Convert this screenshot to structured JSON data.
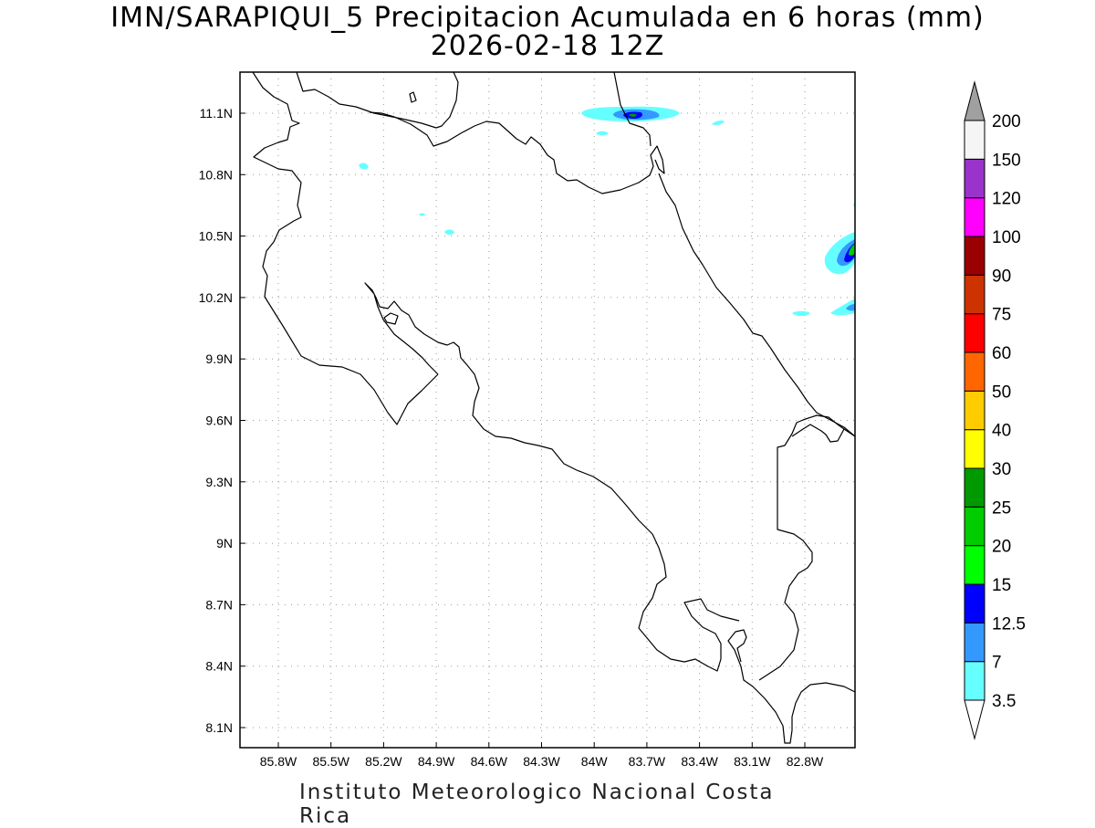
{
  "title": {
    "line1": "IMN/SARAPIQUI_5 Precipitacion Acumulada en 6 horas (mm)",
    "line2": "2026-02-18 12Z"
  },
  "footer": "Instituto Meteorologico Nacional Costa Rica",
  "map": {
    "lon_ticks": [
      "85.8W",
      "85.5W",
      "85.2W",
      "84.9W",
      "84.6W",
      "84.3W",
      "84W",
      "83.7W",
      "83.4W",
      "83.1W",
      "82.8W"
    ],
    "lat_ticks": [
      "11.1N",
      "10.8N",
      "10.5N",
      "10.2N",
      "9.9N",
      "9.6N",
      "9.3N",
      "9N",
      "8.7N",
      "8.4N",
      "8.1N"
    ],
    "grid": true,
    "grid_style": "dotted"
  },
  "colorbar": {
    "levels": [
      "3.5",
      "7",
      "12.5",
      "15",
      "20",
      "25",
      "30",
      "40",
      "50",
      "60",
      "75",
      "90",
      "100",
      "120",
      "150",
      "200"
    ],
    "colors": [
      "#66ffff",
      "#3399ff",
      "#0000ff",
      "#00ff00",
      "#00cc00",
      "#009900",
      "#ffff00",
      "#ffcc00",
      "#ff6600",
      "#ff0000",
      "#cc3300",
      "#990000",
      "#ff00ff",
      "#9933cc",
      "#f5f5f5"
    ],
    "top_arrow_color": "#a0a0a0",
    "bottom_arrow_color": "#ffffff"
  }
}
